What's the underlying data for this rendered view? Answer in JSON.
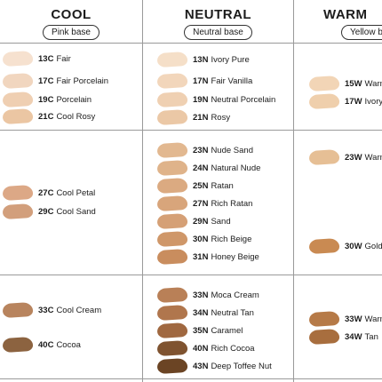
{
  "columns": [
    {
      "title": "COOL",
      "base": "Pink base"
    },
    {
      "title": "NEUTRAL",
      "base": "Neutral base"
    },
    {
      "title": "WARM",
      "base": "Yellow base"
    }
  ],
  "shades": {
    "cool": [
      {
        "code": "13C",
        "name": "Fair",
        "color": "#f6e1cf"
      },
      {
        "code": "17C",
        "name": "Fair Porcelain",
        "color": "#f1d6bf"
      },
      {
        "code": "19C",
        "name": "Porcelain",
        "color": "#efcfb2"
      },
      {
        "code": "21C",
        "name": "Cool Rosy",
        "color": "#ebc6a3"
      },
      {
        "code": "27C",
        "name": "Cool Petal",
        "color": "#dca886"
      },
      {
        "code": "29C",
        "name": "Cool Sand",
        "color": "#d29f7c"
      },
      {
        "code": "33C",
        "name": "Cool Cream",
        "color": "#b8845e"
      },
      {
        "code": "40C",
        "name": "Cocoa",
        "color": "#8c6340"
      }
    ],
    "neutral": [
      {
        "code": "13N",
        "name": "Ivory Pure",
        "color": "#f5dfc8"
      },
      {
        "code": "17N",
        "name": "Fair Vanilla",
        "color": "#f2d6bb"
      },
      {
        "code": "19N",
        "name": "Neutral Porcelain",
        "color": "#efd0b2"
      },
      {
        "code": "21N",
        "name": "Rosy",
        "color": "#ebc8a6"
      },
      {
        "code": "23N",
        "name": "Nude Sand",
        "color": "#e2b890"
      },
      {
        "code": "24N",
        "name": "Natural Nude",
        "color": "#dfb38a"
      },
      {
        "code": "25N",
        "name": "Ratan",
        "color": "#dbaa81"
      },
      {
        "code": "27N",
        "name": "Rich Ratan",
        "color": "#d8a57b"
      },
      {
        "code": "29N",
        "name": "Sand",
        "color": "#d5a076"
      },
      {
        "code": "30N",
        "name": "Rich Beige",
        "color": "#cf9769"
      },
      {
        "code": "31N",
        "name": "Honey Beige",
        "color": "#c98d5e"
      },
      {
        "code": "33N",
        "name": "Moca Cream",
        "color": "#b98057"
      },
      {
        "code": "34N",
        "name": "Neutral Tan",
        "color": "#b0764d"
      },
      {
        "code": "35N",
        "name": "Caramel",
        "color": "#a06840"
      },
      {
        "code": "40N",
        "name": "Rich Cocoa",
        "color": "#7f5330"
      },
      {
        "code": "43N",
        "name": "Deep Toffee Nut",
        "color": "#6b4424"
      }
    ],
    "warm": [
      {
        "code": "15W",
        "name": "Warm",
        "color": "#f2d5b6"
      },
      {
        "code": "17W",
        "name": "Ivory V",
        "color": "#efcfac"
      },
      {
        "code": "23W",
        "name": "Warm",
        "color": "#e6bf95"
      },
      {
        "code": "30W",
        "name": "Gold H",
        "color": "#c98a52"
      },
      {
        "code": "33W",
        "name": "Warm",
        "color": "#b67a47"
      },
      {
        "code": "34W",
        "name": "Tan",
        "color": "#a86e3e"
      }
    ]
  }
}
